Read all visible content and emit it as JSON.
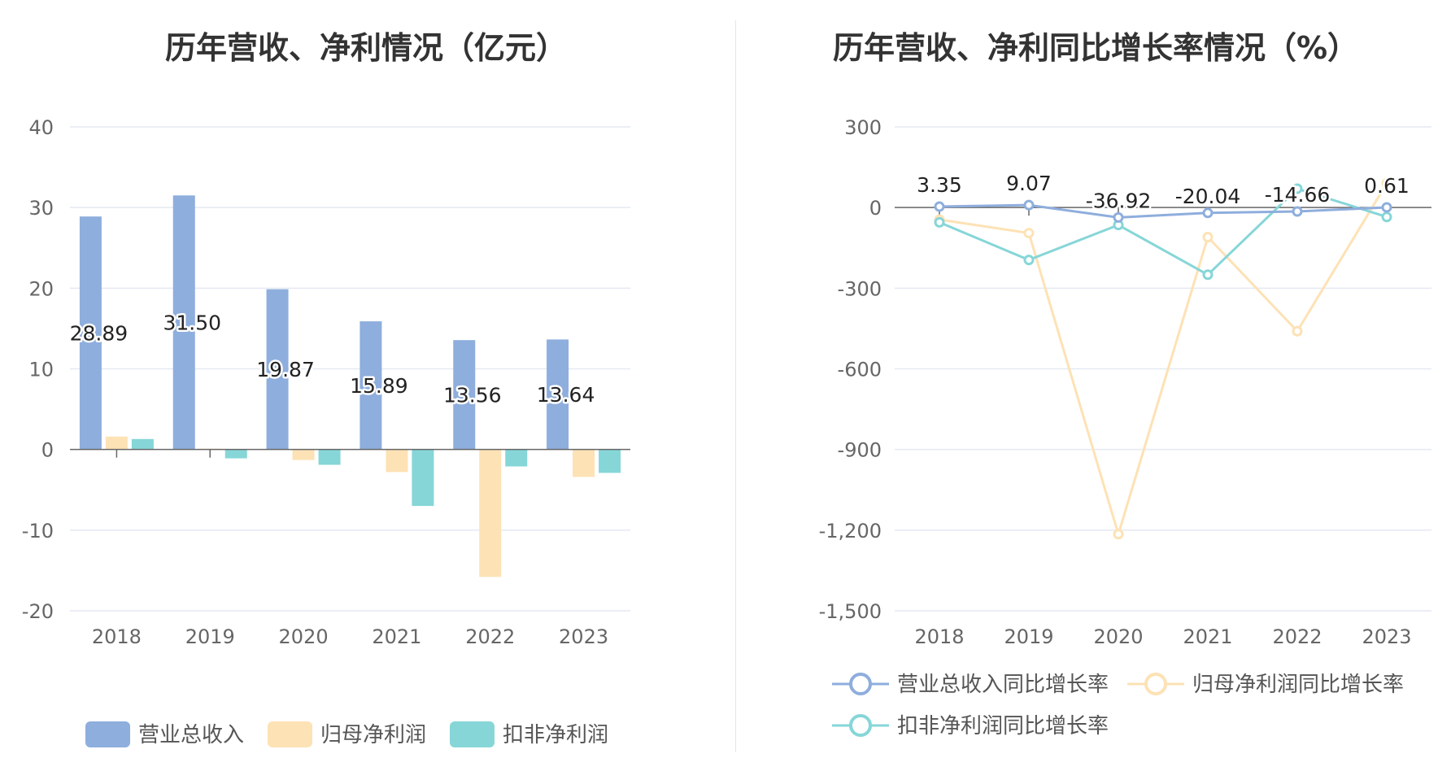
{
  "colors": {
    "revenue": "#8eaedd",
    "net_profit": "#fde2b5",
    "deducted_profit": "#86d6d8",
    "grid": "#e4e9f2",
    "axis": "#666666"
  },
  "chart_data": [
    {
      "type": "bar",
      "title": "历年营收、净利情况（亿元）",
      "categories": [
        "2018",
        "2019",
        "2020",
        "2021",
        "2022",
        "2023"
      ],
      "ylim": [
        -20,
        40
      ],
      "yticks": [
        "40",
        "30",
        "20",
        "10",
        "0",
        "-10",
        "-20"
      ],
      "series": [
        {
          "name": "营业总收入",
          "values": [
            28.89,
            31.5,
            19.87,
            15.89,
            13.56,
            13.64
          ],
          "labels": [
            "28.89",
            "31.50",
            "19.87",
            "15.89",
            "13.56",
            "13.64"
          ]
        },
        {
          "name": "归母净利润",
          "values": [
            1.6,
            0.1,
            -1.3,
            -2.8,
            -15.8,
            -3.4
          ]
        },
        {
          "name": "扣非净利润",
          "values": [
            1.3,
            -1.1,
            -1.9,
            -7.0,
            -2.1,
            -2.9
          ]
        }
      ]
    },
    {
      "type": "line",
      "title": "历年营收、净利同比增长率情况（%）",
      "categories": [
        "2018",
        "2019",
        "2020",
        "2021",
        "2022",
        "2023"
      ],
      "ylim": [
        -1500,
        300
      ],
      "yticks": [
        "300",
        "0",
        "-300",
        "-600",
        "-900",
        "-1,200",
        "-1,500"
      ],
      "series": [
        {
          "name": "营业总收入同比增长率",
          "values": [
            3.35,
            9.07,
            -36.92,
            -20.04,
            -14.66,
            0.61
          ],
          "labels": [
            "3.35",
            "9.07",
            "-36.92",
            "-20.04",
            "-14.66",
            "0.61"
          ]
        },
        {
          "name": "归母净利润同比增长率",
          "values": [
            -45,
            -95,
            -1215,
            -110,
            -460,
            90
          ]
        },
        {
          "name": "扣非净利润同比增长率",
          "values": [
            -55,
            -195,
            -65,
            -250,
            70,
            -35
          ]
        }
      ]
    }
  ]
}
